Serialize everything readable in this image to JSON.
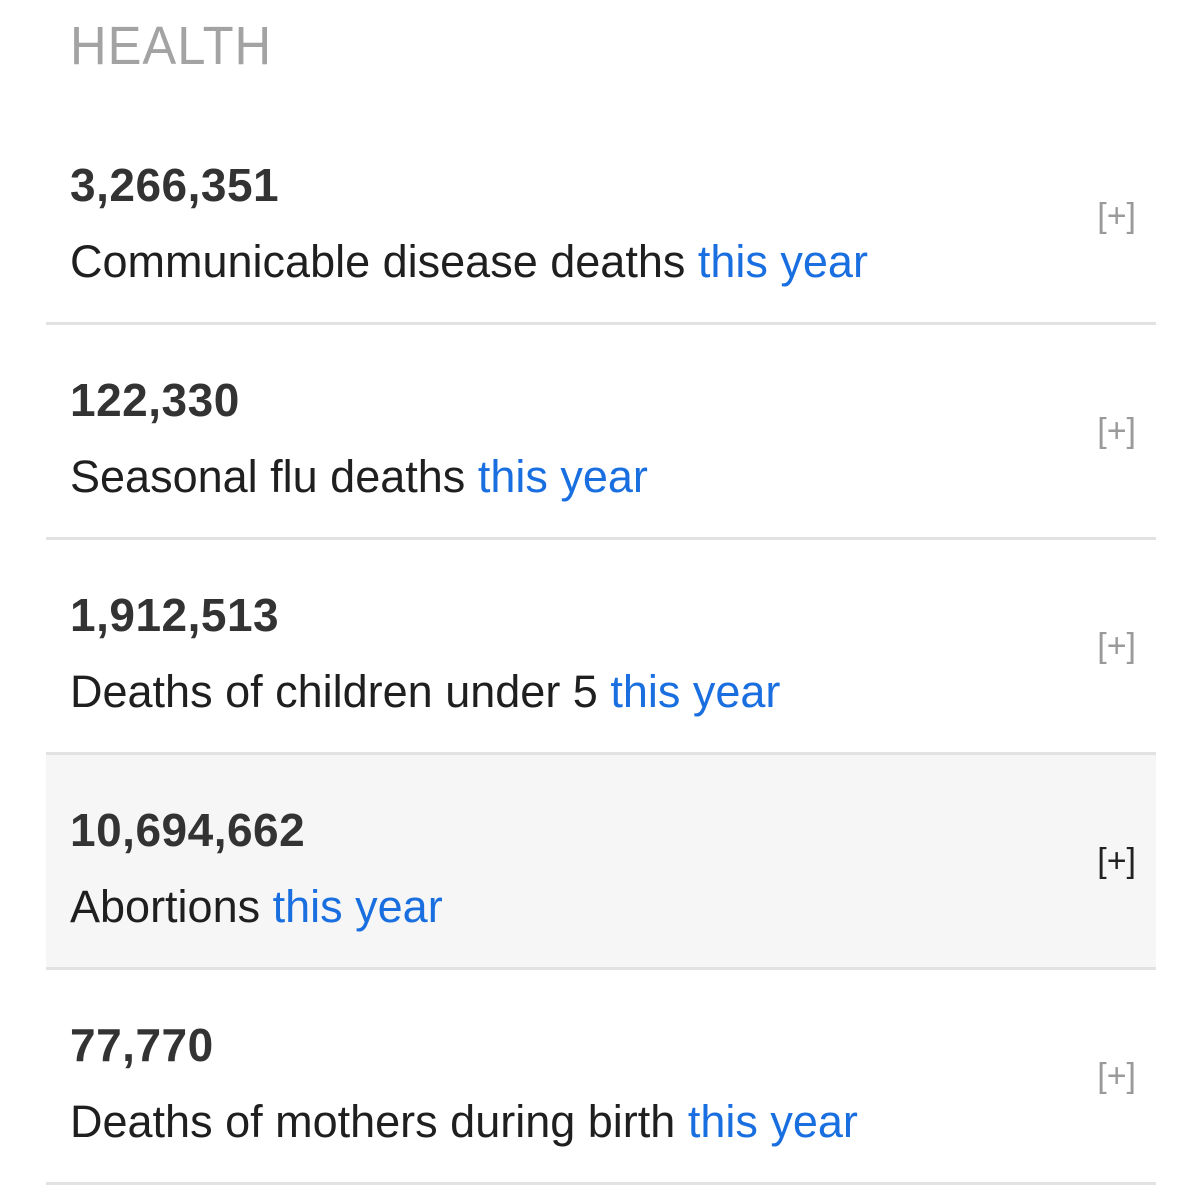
{
  "section": {
    "title": "HEALTH"
  },
  "stats": [
    {
      "value": "3,266,351",
      "label": "Communicable disease deaths",
      "period": "this year",
      "toggle": "[+]"
    },
    {
      "value": "122,330",
      "label": "Seasonal flu deaths",
      "period": "this year",
      "toggle": "[+]"
    },
    {
      "value": "1,912,513",
      "label": "Deaths of children under 5",
      "period": "this year",
      "toggle": "[+]"
    },
    {
      "value": "10,694,662",
      "label": "Abortions",
      "period": "this year",
      "toggle": "[+]",
      "highlighted": true
    },
    {
      "value": "77,770",
      "label": "Deaths of mothers during birth",
      "period": "this year",
      "toggle": "[+]"
    }
  ],
  "colors": {
    "title": "#a3a3a3",
    "value": "#333333",
    "label": "#1f1f1f",
    "period_link": "#1a6fe0",
    "toggle": "#9a9a9a",
    "toggle_active": "#222222",
    "row_highlight": "#f6f6f6",
    "divider": "#e2e2e2"
  }
}
